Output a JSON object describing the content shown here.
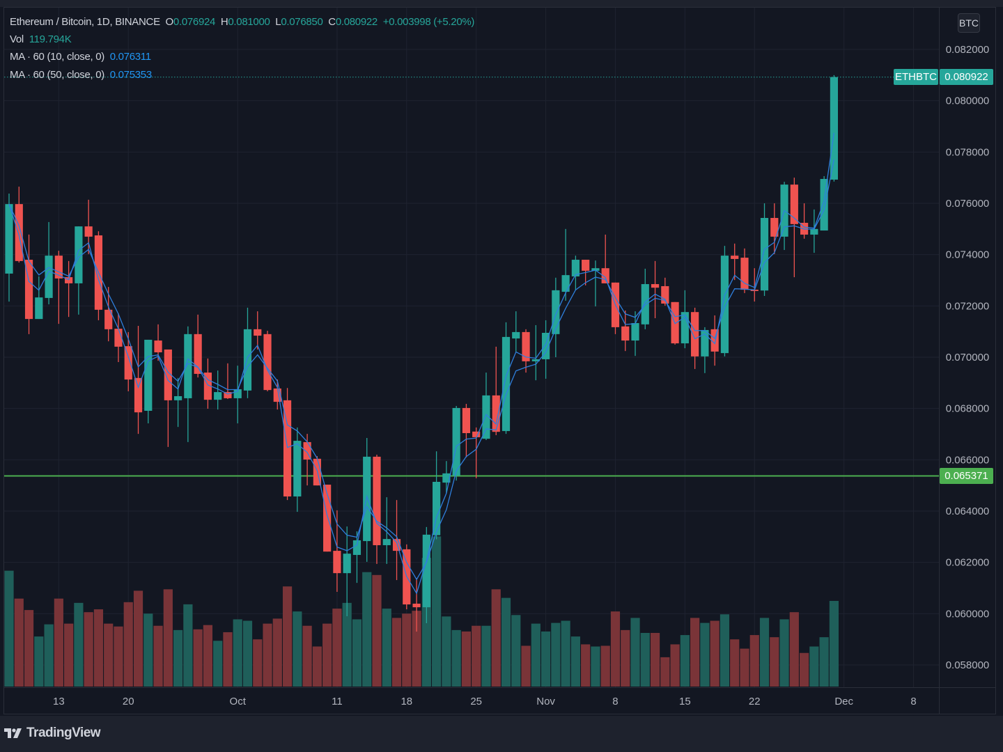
{
  "legend": {
    "symbol": "Ethereum / Bitcoin, 1D, BINANCE",
    "o_label": "O",
    "o_value": "0.076924",
    "h_label": "H",
    "h_value": "0.081000",
    "l_label": "L",
    "l_value": "0.076850",
    "c_label": "C",
    "c_value": "0.080922",
    "change": "+0.003998 (+5.20%)",
    "vol_label": "Vol",
    "vol_value": "119.794K",
    "ma1_label": "MA · 60 (10, close, 0)",
    "ma1_value": "0.076311",
    "ma2_label": "MA · 60 (50, close, 0)",
    "ma2_value": "0.075353"
  },
  "price_axis": {
    "currency": "BTC"
  },
  "last_price": {
    "symbol": "ETHBTC",
    "value": "0.080922"
  },
  "horizontal_line": {
    "value": "0.065371",
    "color": "#4caf50"
  },
  "branding": {
    "name": "TradingView"
  },
  "colors": {
    "up": "#26a69a",
    "down": "#ef5350",
    "volume_up": "#1f5f5a",
    "volume_down": "#7a3438",
    "ma": "#2f7fdc",
    "background": "#131722"
  },
  "chart_data": {
    "type": "candlestick",
    "title": "Ethereum / Bitcoin, 1D, BINANCE",
    "ylim": [
      0.057,
      0.0837
    ],
    "yticks": [
      "0.082000",
      "0.080000",
      "0.078000",
      "0.076000",
      "0.074000",
      "0.072000",
      "0.070000",
      "0.068000",
      "0.066000",
      "0.064000",
      "0.062000",
      "0.060000",
      "0.058000"
    ],
    "xticks": [
      {
        "label": "13",
        "date": "09-13"
      },
      {
        "label": "20",
        "date": "09-20"
      },
      {
        "label": "Oct",
        "date": "10-01"
      },
      {
        "label": "11",
        "date": "10-11"
      },
      {
        "label": "18",
        "date": "10-18"
      },
      {
        "label": "25",
        "date": "10-25"
      },
      {
        "label": "Nov",
        "date": "11-01"
      },
      {
        "label": "8",
        "date": "11-08"
      },
      {
        "label": "15",
        "date": "11-15"
      },
      {
        "label": "22",
        "date": "11-22"
      },
      {
        "label": "Dec",
        "date": "12-01"
      },
      {
        "label": "8",
        "date": "12-08"
      }
    ],
    "grid": true,
    "volume_unit": "K",
    "columns": [
      "date",
      "open",
      "high",
      "low",
      "close",
      "volume"
    ],
    "candles": [
      [
        "09-08",
        0.07326,
        0.07638,
        0.07217,
        0.07597,
        162
      ],
      [
        "09-09",
        0.07597,
        0.07665,
        0.07369,
        0.07375,
        123
      ],
      [
        "09-10",
        0.0738,
        0.07478,
        0.0709,
        0.07149,
        107
      ],
      [
        "09-11",
        0.07149,
        0.07315,
        0.07149,
        0.07233,
        70
      ],
      [
        "09-12",
        0.07231,
        0.07527,
        0.07206,
        0.07396,
        87
      ],
      [
        "09-13",
        0.07396,
        0.07415,
        0.0713,
        0.07307,
        123
      ],
      [
        "09-14",
        0.07312,
        0.07375,
        0.07157,
        0.07288,
        88
      ],
      [
        "09-15",
        0.07288,
        0.0751,
        0.07166,
        0.0751,
        117
      ],
      [
        "09-16",
        0.0751,
        0.07614,
        0.07402,
        0.0747,
        104
      ],
      [
        "09-17",
        0.07475,
        0.07491,
        0.07144,
        0.07185,
        108
      ],
      [
        "09-18",
        0.07185,
        0.07274,
        0.07062,
        0.07109,
        88
      ],
      [
        "09-19",
        0.07111,
        0.07171,
        0.06981,
        0.07041,
        84
      ],
      [
        "09-20",
        0.07043,
        0.07098,
        0.06867,
        0.06913,
        118
      ],
      [
        "09-21",
        0.06919,
        0.07122,
        0.06701,
        0.06785,
        134
      ],
      [
        "09-22",
        0.06791,
        0.07068,
        0.06742,
        0.07068,
        102
      ],
      [
        "09-23",
        0.07065,
        0.07128,
        0.06986,
        0.07019,
        85
      ],
      [
        "09-24",
        0.0703,
        0.0703,
        0.0665,
        0.06832,
        136
      ],
      [
        "09-25",
        0.06832,
        0.06919,
        0.06728,
        0.06848,
        79
      ],
      [
        "09-26",
        0.0684,
        0.0712,
        0.06669,
        0.0709,
        115
      ],
      [
        "09-27",
        0.0709,
        0.07166,
        0.06921,
        0.06935,
        80
      ],
      [
        "09-28",
        0.0694,
        0.06995,
        0.06799,
        0.06834,
        86
      ],
      [
        "09-29",
        0.06834,
        0.06948,
        0.06796,
        0.06864,
        64
      ],
      [
        "09-30",
        0.06864,
        0.06976,
        0.06837,
        0.0684,
        76
      ],
      [
        "10-01",
        0.0684,
        0.06967,
        0.06742,
        0.06875,
        94
      ],
      [
        "10-02",
        0.0687,
        0.07193,
        0.0684,
        0.07109,
        92
      ],
      [
        "10-03",
        0.07109,
        0.07179,
        0.0703,
        0.07084,
        66
      ],
      [
        "10-04",
        0.0709,
        0.07103,
        0.06867,
        0.06872,
        88
      ],
      [
        "10-05",
        0.06878,
        0.06913,
        0.06796,
        0.06826,
        95
      ],
      [
        "10-06",
        0.06832,
        0.0688,
        0.06443,
        0.06457,
        140
      ],
      [
        "10-07",
        0.06457,
        0.06726,
        0.06397,
        0.06674,
        105
      ],
      [
        "10-08",
        0.06669,
        0.06701,
        0.065,
        0.06601,
        85
      ],
      [
        "10-09",
        0.06604,
        0.06614,
        0.065,
        0.065,
        56
      ],
      [
        "10-10",
        0.06503,
        0.06503,
        0.06242,
        0.06242,
        88
      ],
      [
        "10-11",
        0.06245,
        0.06403,
        0.06085,
        0.06158,
        109
      ],
      [
        "10-12",
        0.06158,
        0.0634,
        0.0599,
        0.06234,
        117
      ],
      [
        "10-13",
        0.06229,
        0.06321,
        0.0612,
        0.06286,
        94
      ],
      [
        "10-14",
        0.06283,
        0.06685,
        0.06202,
        0.06612,
        160
      ],
      [
        "10-15",
        0.06612,
        0.0662,
        0.06194,
        0.06267,
        156
      ],
      [
        "10-16",
        0.06267,
        0.06454,
        0.06194,
        0.06291,
        109
      ],
      [
        "10-17",
        0.06291,
        0.06443,
        0.06131,
        0.06245,
        96
      ],
      [
        "10-18",
        0.06251,
        0.0627,
        0.06017,
        0.06036,
        102
      ],
      [
        "10-19",
        0.06039,
        0.06139,
        0.0593,
        0.06025,
        106
      ],
      [
        "10-20",
        0.06025,
        0.06338,
        0.05963,
        0.06308,
        180
      ],
      [
        "10-21",
        0.06306,
        0.06633,
        0.0629,
        0.06514,
        210
      ],
      [
        "10-22",
        0.06511,
        0.06595,
        0.0647,
        0.06547,
        98
      ],
      [
        "10-23",
        0.06538,
        0.0681,
        0.06519,
        0.06802,
        79
      ],
      [
        "10-24",
        0.06802,
        0.06818,
        0.06609,
        0.06704,
        77
      ],
      [
        "10-25",
        0.0671,
        0.06726,
        0.06528,
        0.06688,
        85
      ],
      [
        "10-26",
        0.06682,
        0.0694,
        0.06677,
        0.06851,
        85
      ],
      [
        "10-27",
        0.06851,
        0.07041,
        0.06696,
        0.06709,
        136
      ],
      [
        "10-28",
        0.06712,
        0.07136,
        0.06701,
        0.07079,
        124
      ],
      [
        "10-29",
        0.07073,
        0.07179,
        0.07022,
        0.07098,
        100
      ],
      [
        "10-30",
        0.07098,
        0.07109,
        0.0694,
        0.06984,
        57
      ],
      [
        "10-31",
        0.06984,
        0.07125,
        0.0691,
        0.06992,
        88
      ],
      [
        "11-01",
        0.06992,
        0.07144,
        0.06916,
        0.07095,
        77
      ],
      [
        "11-02",
        0.0709,
        0.0731,
        0.07,
        0.07261,
        89
      ],
      [
        "11-03",
        0.07255,
        0.075,
        0.0722,
        0.0732,
        92
      ],
      [
        "11-04",
        0.07315,
        0.07396,
        0.07261,
        0.0738,
        70
      ],
      [
        "11-05",
        0.0738,
        0.0738,
        0.0728,
        0.07337,
        59
      ],
      [
        "11-06",
        0.07337,
        0.07377,
        0.07198,
        0.07347,
        56
      ],
      [
        "11-07",
        0.07347,
        0.07478,
        0.07288,
        0.07288,
        57
      ],
      [
        "11-08",
        0.07291,
        0.07291,
        0.0709,
        0.07117,
        105
      ],
      [
        "11-09",
        0.0712,
        0.07182,
        0.07024,
        0.07065,
        79
      ],
      [
        "11-10",
        0.07065,
        0.07179,
        0.07005,
        0.07133,
        96
      ],
      [
        "11-11",
        0.07128,
        0.07345,
        0.07109,
        0.07285,
        75
      ],
      [
        "11-12",
        0.07285,
        0.07375,
        0.07152,
        0.07271,
        75
      ],
      [
        "11-13",
        0.07277,
        0.0731,
        0.07201,
        0.07209,
        41
      ],
      [
        "11-14",
        0.07215,
        0.07215,
        0.07049,
        0.07054,
        59
      ],
      [
        "11-15",
        0.07054,
        0.07261,
        0.07035,
        0.07176,
        72
      ],
      [
        "11-16",
        0.07176,
        0.07193,
        0.06954,
        0.07003,
        96
      ],
      [
        "11-17",
        0.07003,
        0.07117,
        0.06938,
        0.07106,
        89
      ],
      [
        "11-18",
        0.07109,
        0.07163,
        0.06967,
        0.07022,
        92
      ],
      [
        "11-19",
        0.07016,
        0.07434,
        0.07003,
        0.07396,
        101
      ],
      [
        "11-20",
        0.07396,
        0.07443,
        0.07301,
        0.07383,
        66
      ],
      [
        "11-21",
        0.07388,
        0.07424,
        0.0725,
        0.07263,
        53
      ],
      [
        "11-22",
        0.07263,
        0.07347,
        0.07217,
        0.07258,
        72
      ],
      [
        "11-23",
        0.0726,
        0.076,
        0.07239,
        0.07543,
        96
      ],
      [
        "11-24",
        0.07543,
        0.076,
        0.07402,
        0.0747,
        69
      ],
      [
        "11-25",
        0.0747,
        0.07684,
        0.07418,
        0.07673,
        94
      ],
      [
        "11-26",
        0.07673,
        0.077,
        0.07312,
        0.07519,
        104
      ],
      [
        "11-27",
        0.07524,
        0.076,
        0.07462,
        0.07478,
        47
      ],
      [
        "11-28",
        0.07478,
        0.07576,
        0.07407,
        0.075,
        56
      ],
      [
        "11-29",
        0.07494,
        0.07706,
        0.07494,
        0.07695,
        69
      ],
      [
        "11-30",
        0.076924,
        0.081,
        0.07685,
        0.080922,
        119.794
      ]
    ]
  }
}
